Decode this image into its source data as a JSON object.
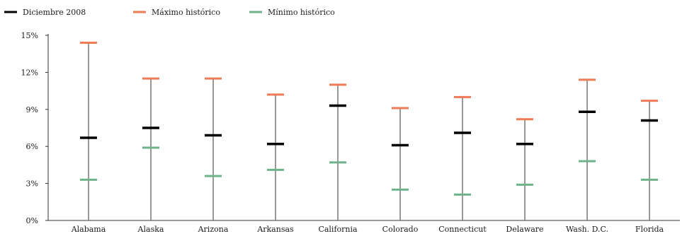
{
  "chart_data": {
    "type": "range",
    "legend_placement": "top-left",
    "series": [
      {
        "key": "current",
        "name": "Diciembre 2008",
        "color": "#000000"
      },
      {
        "key": "max",
        "name": "Máximo histórico",
        "color": "#f07a55"
      },
      {
        "key": "min",
        "name": "Mínimo histórico",
        "color": "#6db38a"
      }
    ],
    "ylim": [
      0,
      15
    ],
    "yticks": [
      {
        "value": 0,
        "label": "0%"
      },
      {
        "value": 3,
        "label": "3%"
      },
      {
        "value": 6,
        "label": "6%"
      },
      {
        "value": 9,
        "label": "9%"
      },
      {
        "value": 12,
        "label": "12%"
      },
      {
        "value": 15,
        "label": "15%"
      }
    ],
    "grid": false,
    "categories": [
      "Alabama",
      "Alaska",
      "Arizona",
      "Arkansas",
      "California",
      "Colorado",
      "Connecticut",
      "Delaware",
      "Wash. D.C.",
      "Florida"
    ],
    "current": [
      6.7,
      7.5,
      6.9,
      6.2,
      9.3,
      6.1,
      7.1,
      6.2,
      8.8,
      8.1
    ],
    "max": [
      14.4,
      11.5,
      11.5,
      10.2,
      11.0,
      9.1,
      10.0,
      8.2,
      11.4,
      9.7
    ],
    "min": [
      3.3,
      5.9,
      3.6,
      4.1,
      4.7,
      2.5,
      2.1,
      2.9,
      4.8,
      3.3
    ],
    "colors": {
      "axis": "#333333",
      "whisker": "#6b6b6b"
    }
  }
}
